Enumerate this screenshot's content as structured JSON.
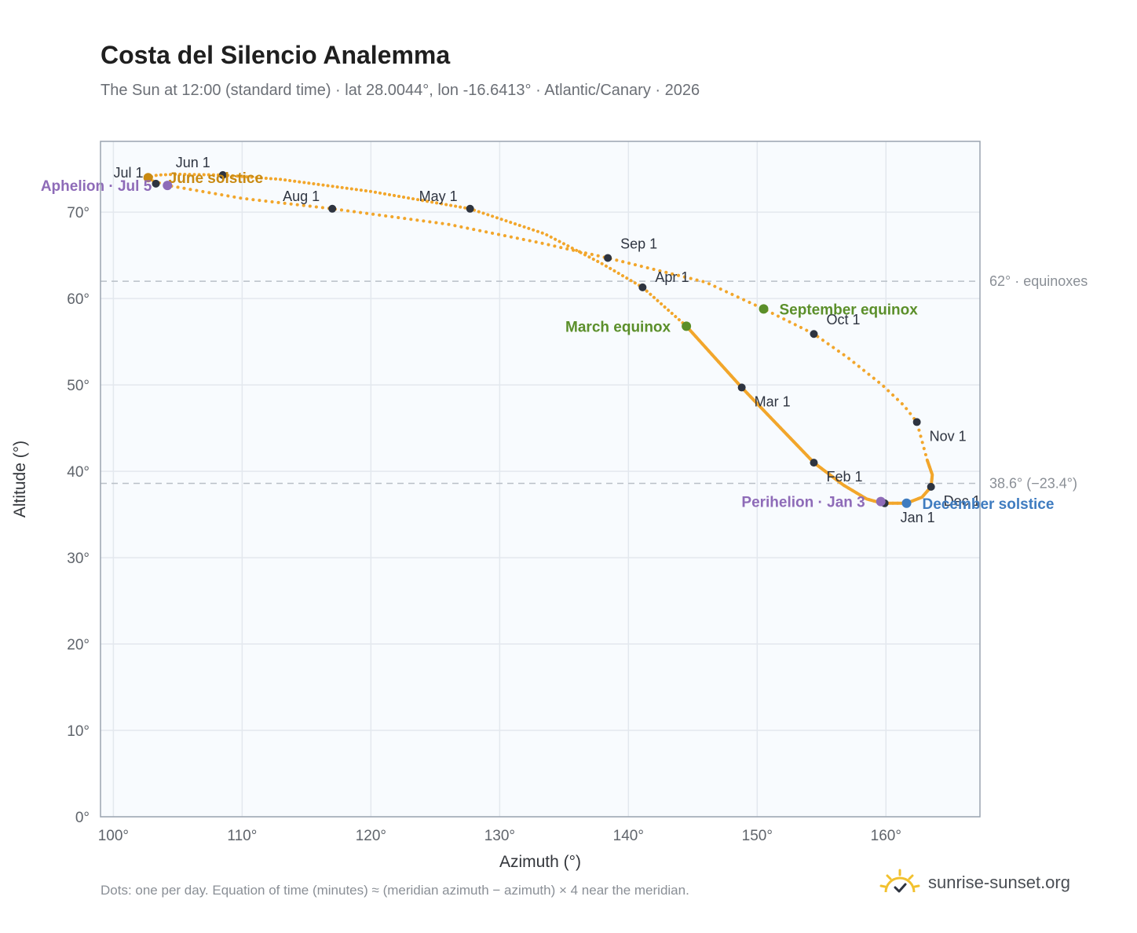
{
  "header": {
    "title": "Costa del Silencio Analemma",
    "subtitle": "The Sun at 12:00 (standard time) · lat 28.0044°, lon -16.6413° · Atlantic/Canary · 2026"
  },
  "footer": {
    "footnote": "Dots: one per day. Equation of time (minutes) ≈ (meridian azimuth − azimuth) × 4 near the meridian.",
    "brand": "sunrise-sunset.org",
    "brand_icon": "sun-check-icon"
  },
  "colors": {
    "curve": "#f2a62b",
    "month_dot": "#2e3440",
    "equinox": "#5b8f2a",
    "december_solstice": "#3f7cc0",
    "june_solstice": "#c98a12",
    "apsis": "#8e6bb8",
    "reference_line": "#b9c0c8",
    "plot_background": "#f8fbfe",
    "grid": "#e3e8ee",
    "frame": "#9aa4b0"
  },
  "chart_data": {
    "type": "scatter",
    "xlabel": "Azimuth (°)",
    "ylabel": "Altitude (°)",
    "xlim": [
      99,
      167.3
    ],
    "ylim": [
      0,
      78.2
    ],
    "xticks": [
      100,
      110,
      120,
      130,
      140,
      150,
      160
    ],
    "yticks": [
      0,
      10,
      20,
      30,
      40,
      50,
      60,
      70
    ],
    "tick_suffix": "°",
    "grid": true,
    "reference_lines": [
      {
        "y": 62.0,
        "label": "62° · equinoxes"
      },
      {
        "y": 38.6,
        "label": "38.6° (−23.4°)"
      }
    ],
    "path": [
      [
        161.6,
        36.3
      ],
      [
        162.8,
        37.0
      ],
      [
        163.5,
        38.2
      ],
      [
        163.6,
        39.6
      ],
      [
        163.2,
        41.3
      ],
      [
        162.4,
        45.7
      ],
      [
        161.4,
        47.6
      ],
      [
        159.7,
        50.0
      ],
      [
        157.0,
        53.2
      ],
      [
        154.4,
        55.9
      ],
      [
        150.5,
        58.8
      ],
      [
        146.0,
        61.9
      ],
      [
        138.4,
        64.7
      ],
      [
        133.0,
        66.5
      ],
      [
        126.0,
        68.6
      ],
      [
        117.0,
        70.4
      ],
      [
        110.0,
        71.6
      ],
      [
        104.2,
        73.1
      ],
      [
        103.1,
        73.6
      ],
      [
        102.7,
        74.0
      ],
      [
        103.4,
        74.3
      ],
      [
        105.0,
        74.4
      ],
      [
        108.5,
        74.3
      ],
      [
        113.0,
        73.8
      ],
      [
        120.0,
        72.4
      ],
      [
        127.7,
        70.4
      ],
      [
        133.5,
        67.5
      ],
      [
        138.0,
        64.0
      ],
      [
        141.1,
        61.3
      ],
      [
        144.5,
        56.8
      ],
      [
        148.8,
        49.7
      ],
      [
        151.5,
        45.5
      ],
      [
        154.4,
        41.0
      ],
      [
        156.7,
        38.4
      ],
      [
        158.5,
        36.8
      ],
      [
        159.7,
        36.3
      ],
      [
        161.6,
        36.3
      ]
    ],
    "month_markers": [
      {
        "label": "Jan 1",
        "x": 159.9,
        "y": 36.3
      },
      {
        "label": "Feb 1",
        "x": 154.4,
        "y": 41.0
      },
      {
        "label": "Mar 1",
        "x": 148.8,
        "y": 49.7
      },
      {
        "label": "Apr 1",
        "x": 141.1,
        "y": 61.3
      },
      {
        "label": "May 1",
        "x": 127.7,
        "y": 70.4
      },
      {
        "label": "Jun 1",
        "x": 108.5,
        "y": 74.3
      },
      {
        "label": "Jul 1",
        "x": 103.3,
        "y": 73.3
      },
      {
        "label": "Aug 1",
        "x": 117.0,
        "y": 70.4
      },
      {
        "label": "Sep 1",
        "x": 138.4,
        "y": 64.7
      },
      {
        "label": "Oct 1",
        "x": 154.4,
        "y": 55.9
      },
      {
        "label": "Nov 1",
        "x": 162.4,
        "y": 45.7
      },
      {
        "label": "Dec 1",
        "x": 163.5,
        "y": 38.2
      }
    ],
    "events": [
      {
        "label": "March equinox",
        "x": 144.5,
        "y": 56.8,
        "kind": "equinox"
      },
      {
        "label": "September equinox",
        "x": 150.5,
        "y": 58.8,
        "kind": "equinox"
      },
      {
        "label": "June solstice",
        "x": 102.7,
        "y": 74.0,
        "kind": "june_solstice"
      },
      {
        "label": "December solstice",
        "x": 161.6,
        "y": 36.3,
        "kind": "december_solstice"
      },
      {
        "label": "Perihelion · Jan 3",
        "x": 159.6,
        "y": 36.5,
        "kind": "apsis"
      },
      {
        "label": "Aphelion · Jul 5",
        "x": 104.2,
        "y": 73.1,
        "kind": "apsis"
      }
    ]
  }
}
